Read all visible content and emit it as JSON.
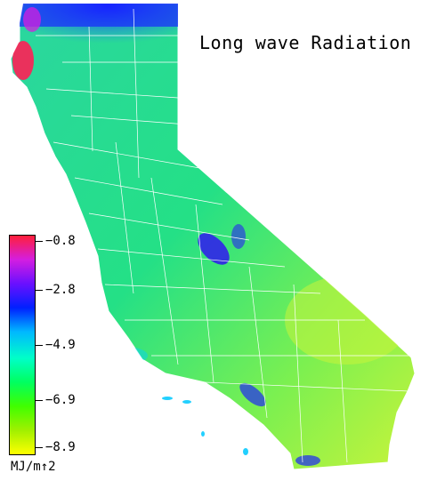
{
  "title": "Long wave Radiation",
  "legend": {
    "ticks": [
      "−0.8",
      "−2.8",
      "−4.9",
      "−6.9",
      "−8.9"
    ],
    "units": "MJ/m↑2",
    "colors": [
      "#ff1f3a",
      "#d41ee0",
      "#6a10ff",
      "#0020ff",
      "#00b8ff",
      "#00ffc8",
      "#00ff60",
      "#40ff00",
      "#a0f000",
      "#ffff00"
    ]
  },
  "palette": {
    "background": "#ffffff",
    "state_fill": "#22e07a",
    "coast_blue": "#1a2aff",
    "mountain_blue": "#2a40e0",
    "desert_yellow": "#c8f43a",
    "red_spot": "#ff1f55",
    "county_lines": "#ffffff"
  }
}
